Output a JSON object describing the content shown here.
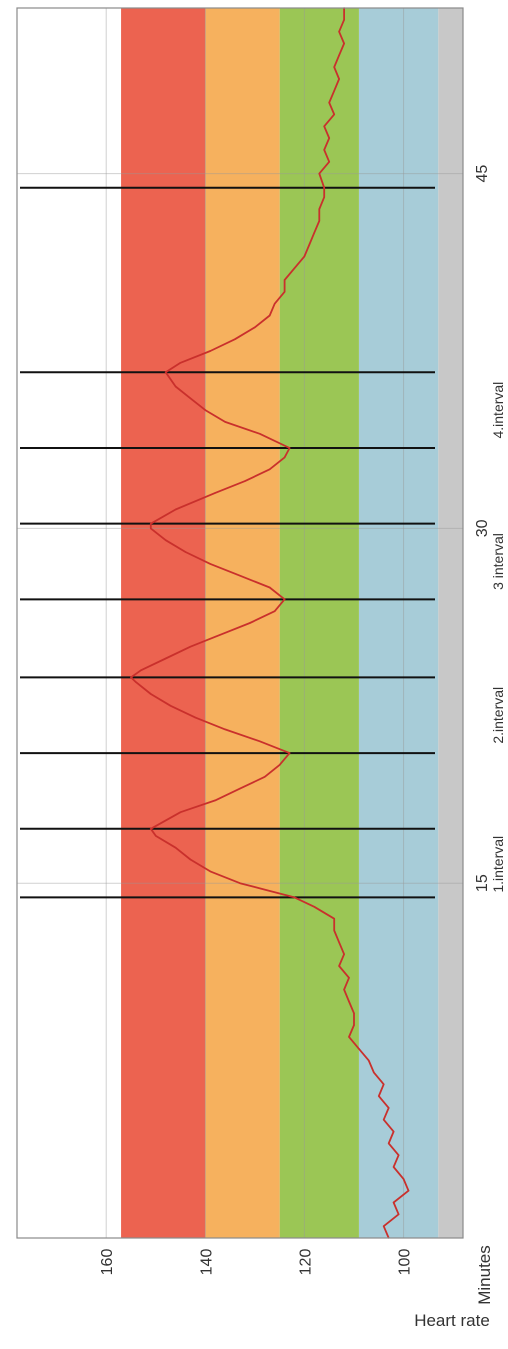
{
  "chart_data": {
    "type": "line",
    "orientation": "rotated-90-ccw",
    "xlabel": "Minutes",
    "ylabel": "Heart rate",
    "xlim": [
      0,
      52
    ],
    "ylim": [
      88,
      178
    ],
    "x_ticks": [
      {
        "value": 15,
        "label": "15"
      },
      {
        "value": 30,
        "label": "30"
      },
      {
        "value": 45,
        "label": "45"
      }
    ],
    "y_ticks": [
      {
        "value": 100,
        "label": "100"
      },
      {
        "value": 120,
        "label": "120"
      },
      {
        "value": 140,
        "label": "140"
      },
      {
        "value": 160,
        "label": "160"
      }
    ],
    "zones": [
      {
        "from": 88,
        "to": 93,
        "color": "#c8c8c8"
      },
      {
        "from": 93,
        "to": 109,
        "color": "#a7ccd8"
      },
      {
        "from": 109,
        "to": 125,
        "color": "#9bc655"
      },
      {
        "from": 125,
        "to": 140,
        "color": "#f6b15e"
      },
      {
        "from": 140,
        "to": 157,
        "color": "#ec6350"
      }
    ],
    "interval_boundaries": [
      14.4,
      17.3,
      20.5,
      23.7,
      27.0,
      30.2,
      33.4,
      36.6,
      44.4
    ],
    "interval_labels": [
      {
        "x": 15.8,
        "label": "1.interval"
      },
      {
        "x": 22.1,
        "label": "2.interval"
      },
      {
        "x": 28.6,
        "label": "3 interval"
      },
      {
        "x": 35.0,
        "label": "4.interval"
      }
    ],
    "series": [
      {
        "color": "#c9302c",
        "points": [
          [
            0.0,
            103
          ],
          [
            0.5,
            104
          ],
          [
            1.0,
            101
          ],
          [
            1.5,
            102
          ],
          [
            2.0,
            99
          ],
          [
            2.5,
            100
          ],
          [
            3.0,
            102
          ],
          [
            3.5,
            101
          ],
          [
            4.0,
            103
          ],
          [
            4.5,
            102
          ],
          [
            5.0,
            104
          ],
          [
            5.5,
            103
          ],
          [
            6.0,
            105
          ],
          [
            6.5,
            104
          ],
          [
            7.0,
            106
          ],
          [
            7.5,
            107
          ],
          [
            8.0,
            109
          ],
          [
            8.5,
            111
          ],
          [
            9.0,
            110
          ],
          [
            9.5,
            110
          ],
          [
            10.0,
            111
          ],
          [
            10.5,
            112
          ],
          [
            11.0,
            111
          ],
          [
            11.5,
            113
          ],
          [
            12.0,
            112
          ],
          [
            12.5,
            113
          ],
          [
            13.0,
            114
          ],
          [
            13.5,
            114
          ],
          [
            14.0,
            118
          ],
          [
            14.4,
            122
          ],
          [
            15.0,
            133
          ],
          [
            15.5,
            139
          ],
          [
            16.0,
            143
          ],
          [
            16.5,
            146
          ],
          [
            17.0,
            150
          ],
          [
            17.3,
            151
          ],
          [
            18.0,
            145
          ],
          [
            18.5,
            138
          ],
          [
            19.0,
            133
          ],
          [
            19.5,
            128
          ],
          [
            20.0,
            125
          ],
          [
            20.5,
            123
          ],
          [
            21.0,
            129
          ],
          [
            21.5,
            136
          ],
          [
            22.0,
            142
          ],
          [
            22.5,
            147
          ],
          [
            23.0,
            151
          ],
          [
            23.5,
            154
          ],
          [
            23.7,
            155
          ],
          [
            24.0,
            153
          ],
          [
            24.5,
            148
          ],
          [
            25.0,
            143
          ],
          [
            25.5,
            137
          ],
          [
            26.0,
            131
          ],
          [
            26.5,
            126
          ],
          [
            27.0,
            124
          ],
          [
            27.5,
            127
          ],
          [
            28.0,
            133
          ],
          [
            28.5,
            139
          ],
          [
            29.0,
            144
          ],
          [
            29.5,
            148
          ],
          [
            30.0,
            151
          ],
          [
            30.2,
            151
          ],
          [
            30.8,
            146
          ],
          [
            31.5,
            138
          ],
          [
            32.0,
            132
          ],
          [
            32.5,
            127
          ],
          [
            33.0,
            124
          ],
          [
            33.4,
            123
          ],
          [
            34.0,
            129
          ],
          [
            34.5,
            136
          ],
          [
            35.0,
            140
          ],
          [
            35.5,
            143
          ],
          [
            36.0,
            146
          ],
          [
            36.6,
            148
          ],
          [
            37.0,
            145
          ],
          [
            37.5,
            139
          ],
          [
            38.0,
            134
          ],
          [
            38.5,
            130
          ],
          [
            39.0,
            127
          ],
          [
            39.5,
            126
          ],
          [
            40.0,
            124
          ],
          [
            40.5,
            124
          ],
          [
            41.0,
            122
          ],
          [
            41.5,
            120
          ],
          [
            42.0,
            119
          ],
          [
            42.5,
            118
          ],
          [
            43.0,
            117
          ],
          [
            43.5,
            117
          ],
          [
            44.0,
            116
          ],
          [
            44.4,
            116
          ],
          [
            45.0,
            117
          ],
          [
            45.5,
            115
          ],
          [
            46.0,
            116
          ],
          [
            46.5,
            115
          ],
          [
            47.0,
            116
          ],
          [
            47.5,
            114
          ],
          [
            48.0,
            115
          ],
          [
            48.5,
            114
          ],
          [
            49.0,
            113
          ],
          [
            49.5,
            114
          ],
          [
            50.0,
            113
          ],
          [
            50.5,
            112
          ],
          [
            51.0,
            113
          ],
          [
            51.5,
            112
          ],
          [
            52.0,
            112
          ]
        ]
      }
    ]
  }
}
